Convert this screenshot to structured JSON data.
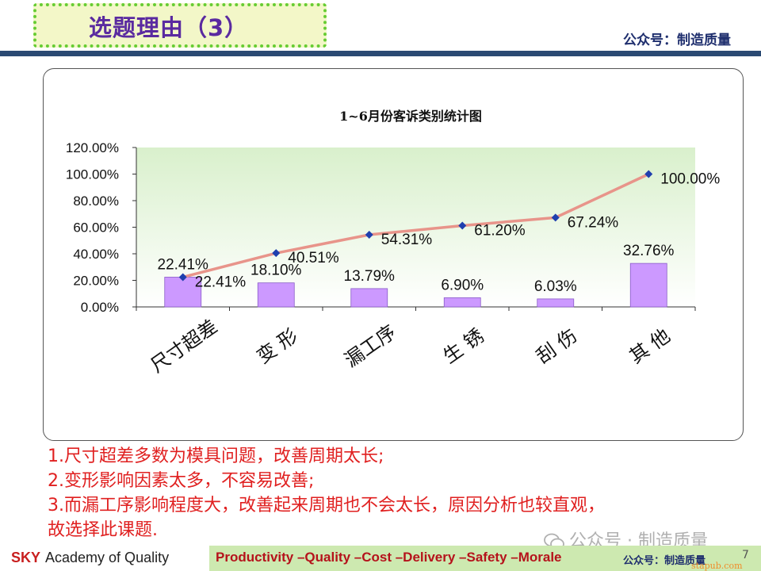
{
  "slide": {
    "title": "选题理由（3）",
    "account": "公众号：制造质量"
  },
  "chart_data": {
    "type": "bar",
    "title": "1~6月份客诉类别统计图",
    "categories": [
      "尺寸超差",
      "变 形",
      "漏工序",
      "生 锈",
      "刮 伤",
      "其 他"
    ],
    "values": [
      22.41,
      18.1,
      13.79,
      6.9,
      6.03,
      32.76
    ],
    "bar_labels": [
      "22.41%",
      "18.10%",
      "13.79%",
      "6.90%",
      "6.03%",
      "32.76%"
    ],
    "cumulative": [
      22.41,
      40.51,
      54.31,
      61.2,
      67.24,
      100.0
    ],
    "cumulative_labels": [
      "22.41%",
      "40.51%",
      "54.31%",
      "61.20%",
      "67.24%",
      "100.00%"
    ],
    "ylim": [
      0,
      120
    ],
    "yticks": [
      "0.00%",
      "20.00%",
      "40.00%",
      "60.00%",
      "80.00%",
      "100.00%",
      "120.00%"
    ],
    "colors": {
      "bar": "#cc99ff",
      "line": "#e8948a",
      "marker": "#1f3fae",
      "plot_bg_top": "#d9f0cc"
    }
  },
  "notes": [
    "1.尺寸超差多数为模具问题，改善周期太长;",
    "2.变形影响因素太多，不容易改善;",
    "3.而漏工序影响程度大，改善起来周期也不会太长，原因分析也较直观，",
    "故选择此课题."
  ],
  "watermark": "公众号 · 制造质量",
  "footer": {
    "brand_bold": "SKY",
    "brand_rest": "Academy of Quality",
    "slogan": "Productivity –Quality –Cost –Delivery –Safety –Morale",
    "account": "公众号：制造质量",
    "page": "7",
    "url": "stapub.com"
  }
}
